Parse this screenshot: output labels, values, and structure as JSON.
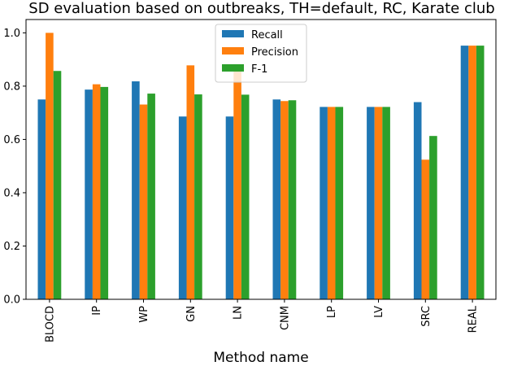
{
  "chart_data": {
    "type": "bar",
    "title": "SD evaluation based on outbreaks, TH=default, RC, Karate club",
    "xlabel": "Method name",
    "ylabel": "",
    "ylim": [
      0,
      1.05
    ],
    "yticks": [
      "0.0",
      "0.2",
      "0.4",
      "0.6",
      "0.8",
      "1.0"
    ],
    "categories": [
      "BLOCD",
      "IP",
      "WP",
      "GN",
      "LN",
      "CNM",
      "LP",
      "LV",
      "SRC",
      "REAL"
    ],
    "series": [
      {
        "name": "Recall",
        "color": "#1f77b4",
        "values": [
          0.75,
          0.787,
          0.818,
          0.686,
          0.686,
          0.75,
          0.722,
          0.722,
          0.74,
          0.952
        ]
      },
      {
        "name": "Precision",
        "color": "#ff7f0e",
        "values": [
          1.0,
          0.807,
          0.731,
          0.878,
          0.864,
          0.744,
          0.722,
          0.722,
          0.524,
          0.952
        ]
      },
      {
        "name": "F-1",
        "color": "#2ca02c",
        "values": [
          0.857,
          0.797,
          0.772,
          0.769,
          0.768,
          0.747,
          0.722,
          0.722,
          0.613,
          0.952
        ]
      }
    ],
    "grid": false,
    "legend_position": "top-center"
  }
}
